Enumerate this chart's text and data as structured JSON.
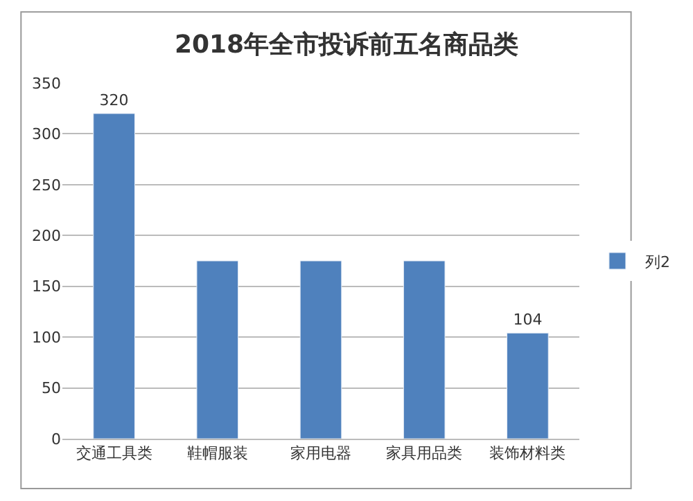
{
  "chart_data": {
    "type": "bar",
    "title": "2018年全市投诉前五名商品类",
    "categories": [
      "交通工具类",
      "鞋帽服装",
      "家用电器",
      "家具用品类",
      "装饰材料类"
    ],
    "series": [
      {
        "name": "列2",
        "color": "#4f81bd",
        "values": [
          320,
          175,
          175,
          175,
          104
        ],
        "value_labels": [
          "320",
          null,
          null,
          null,
          "104"
        ]
      }
    ],
    "ylim": [
      0,
      350
    ],
    "yticks": [
      0,
      50,
      100,
      150,
      200,
      250,
      300,
      350
    ],
    "grid": "y",
    "legend": "right"
  }
}
